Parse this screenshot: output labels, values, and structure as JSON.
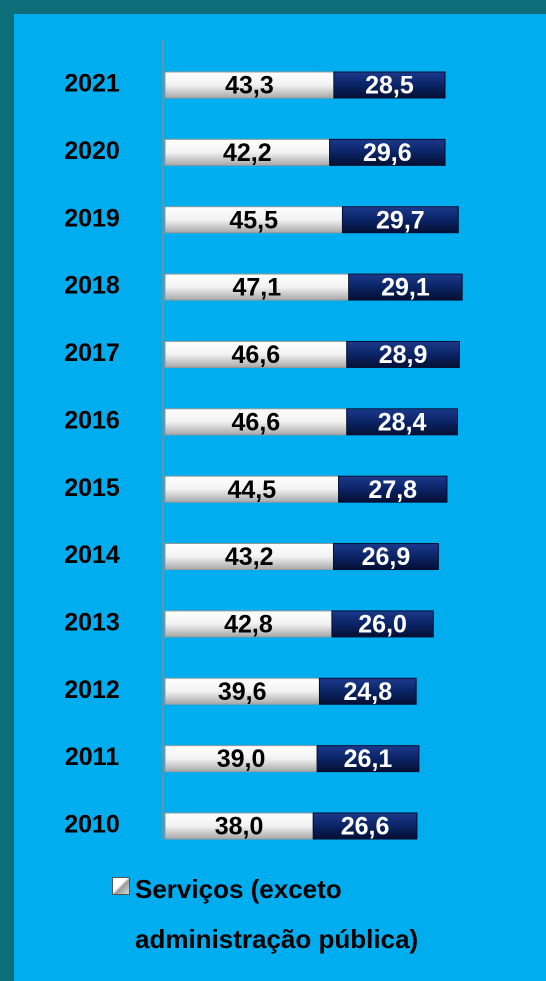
{
  "chart_data": {
    "type": "bar",
    "orientation": "horizontal",
    "stacked": true,
    "categories": [
      "2021",
      "2020",
      "2019",
      "2018",
      "2017",
      "2016",
      "2015",
      "2014",
      "2013",
      "2012",
      "2011",
      "2010"
    ],
    "series": [
      {
        "name": "Serviços (exceto administração pública)",
        "color": "#e8e8e8",
        "values": [
          43.3,
          42.2,
          45.5,
          47.1,
          46.6,
          46.6,
          44.5,
          43.2,
          42.8,
          39.6,
          39.0,
          38.0
        ],
        "value_labels": [
          "43,3",
          "42,2",
          "45,5",
          "47,1",
          "46,6",
          "46,6",
          "44,5",
          "43,2",
          "42,8",
          "39,6",
          "39,0",
          "38,0"
        ]
      },
      {
        "color": "#0b2466",
        "values": [
          28.5,
          29.6,
          29.7,
          29.1,
          28.9,
          28.4,
          27.8,
          26.9,
          26.0,
          24.8,
          26.1,
          26.6
        ],
        "value_labels": [
          "28,5",
          "29,6",
          "29,7",
          "29,1",
          "28,9",
          "28,4",
          "27,8",
          "26,9",
          "26,0",
          "24,8",
          "26,1",
          "26,6"
        ]
      }
    ],
    "legend": "bottom"
  }
}
